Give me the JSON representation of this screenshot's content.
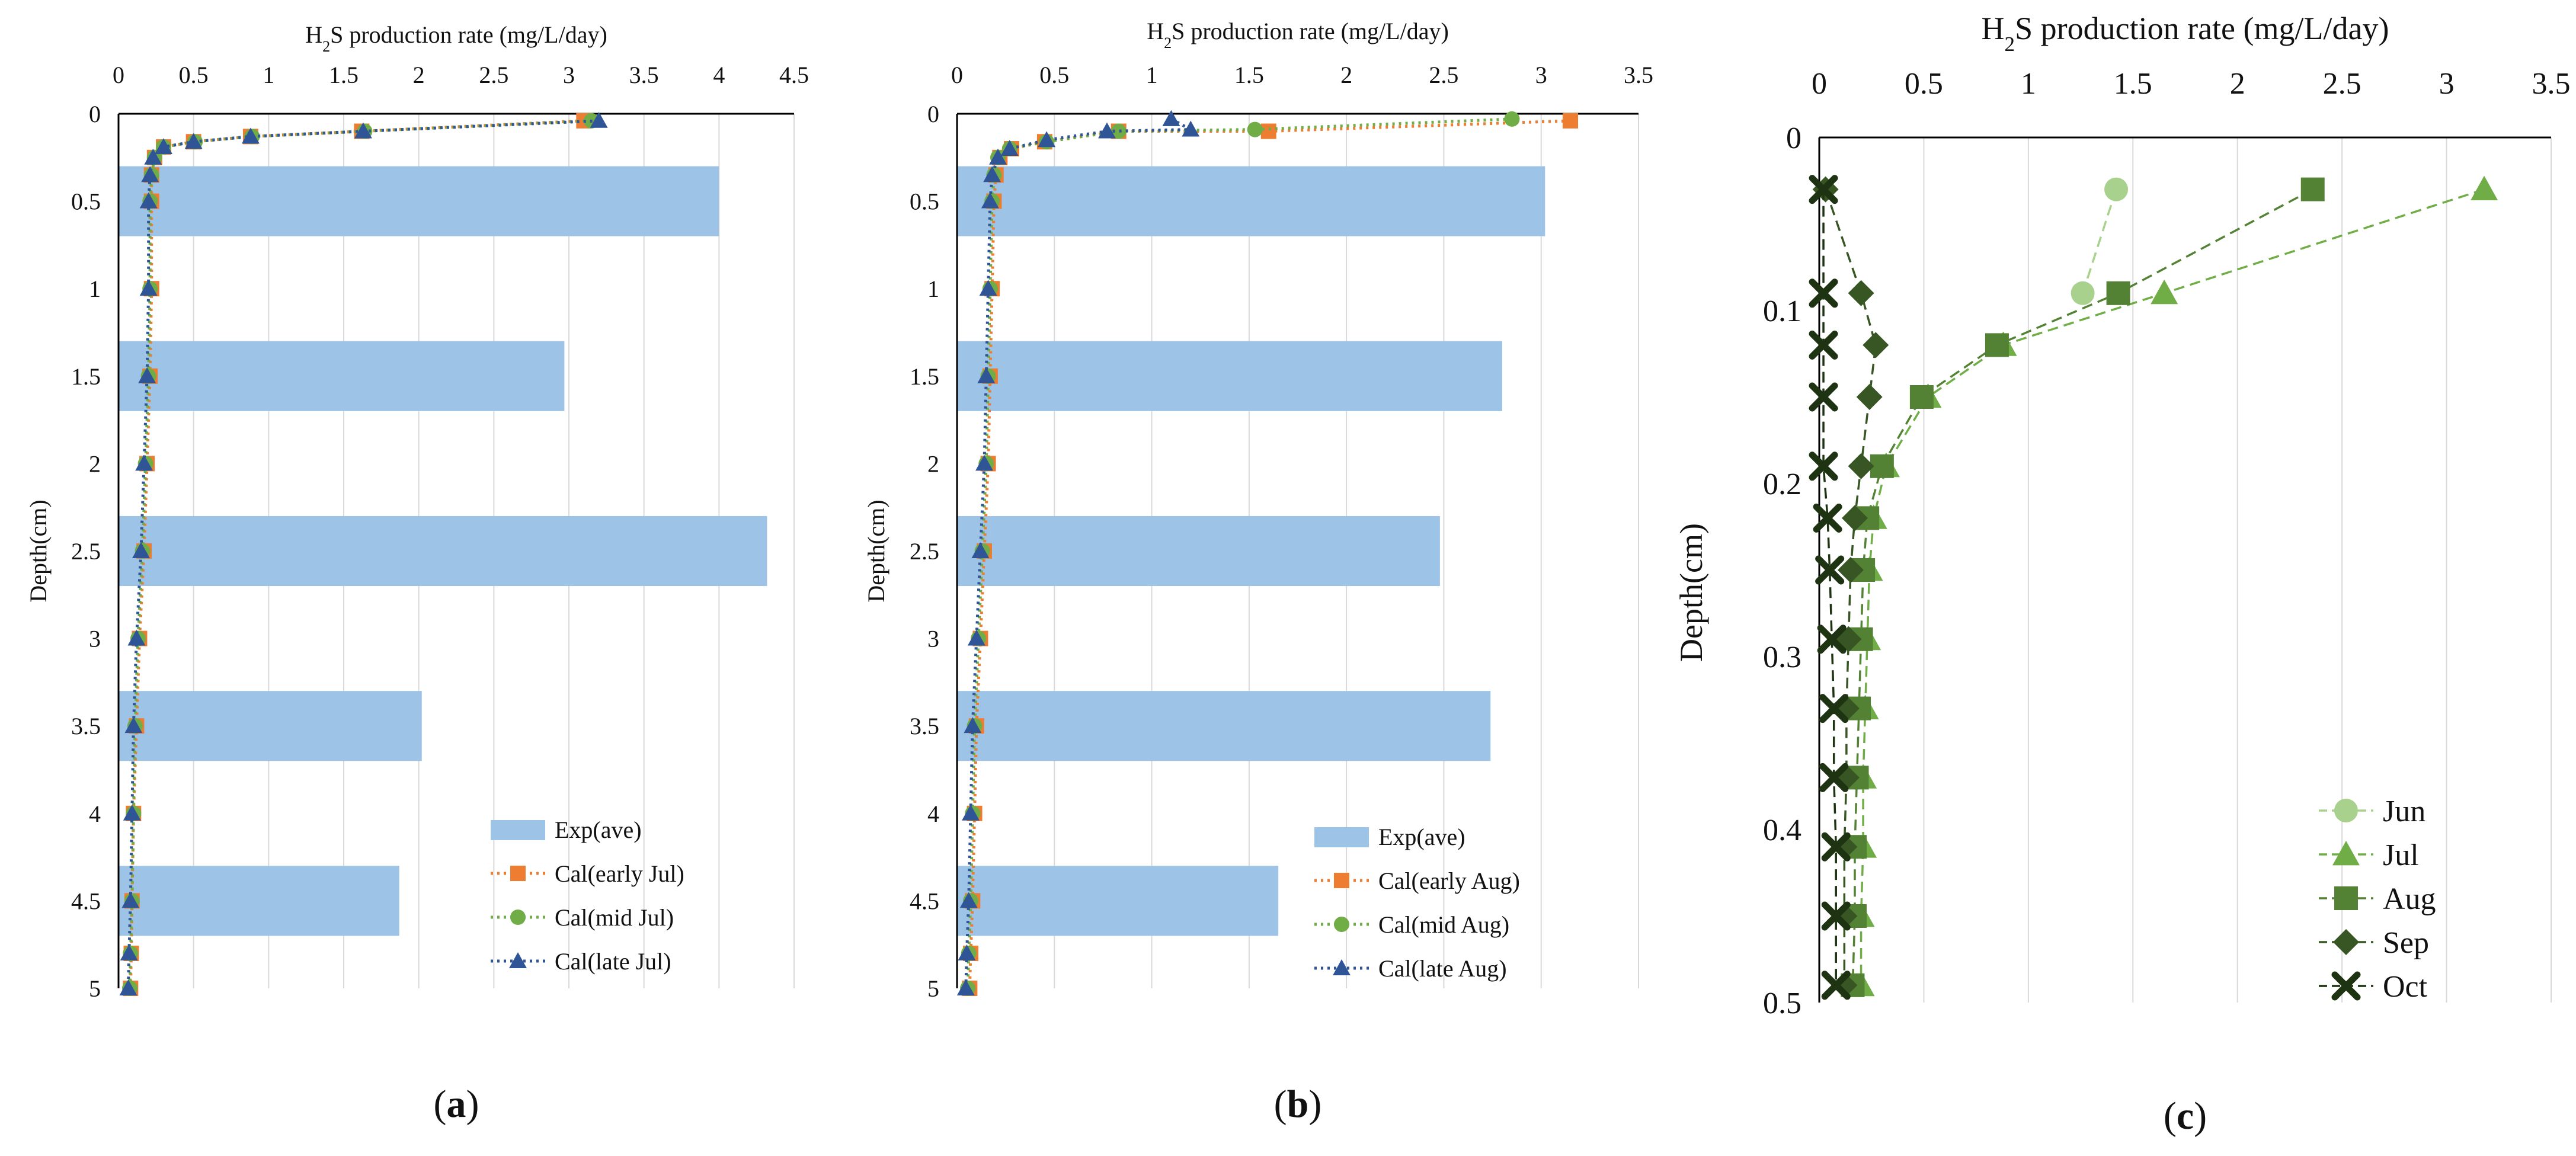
{
  "chart_data": [
    {
      "type": "bar",
      "orientation": "horizontal",
      "panel_label_pre": "(",
      "panel_label": "a",
      "panel_label_post": ")",
      "title_pre": "H",
      "title_sub": "2",
      "title_post": "S production rate (mg/L/day)",
      "ylabel": "Depth(cm)",
      "xlim": [
        0,
        4.5
      ],
      "ylim": [
        0,
        5
      ],
      "x_ticks": [
        "0",
        "0.5",
        "1",
        "1.5",
        "2",
        "2.5",
        "3",
        "3.5",
        "4",
        "4.5"
      ],
      "y_ticks": [
        "0",
        "0.5",
        "1",
        "1.5",
        "2",
        "2.5",
        "3",
        "3.5",
        "4",
        "4.5",
        "5"
      ],
      "grid": "vertical",
      "legend_position": "bottom-right",
      "bars": {
        "name": "Exp(ave)",
        "color": "#9dc3e6",
        "categories": [
          0.5,
          1.5,
          2.5,
          3.5,
          4.5
        ],
        "values": [
          4.0,
          2.97,
          4.32,
          2.02,
          1.87
        ]
      },
      "series": [
        {
          "name": "Cal(early Jul)",
          "color": "#ed7d31",
          "marker": "square",
          "points": [
            [
              3.1,
              0.04
            ],
            [
              1.62,
              0.1
            ],
            [
              0.88,
              0.13
            ],
            [
              0.5,
              0.16
            ],
            [
              0.3,
              0.19
            ],
            [
              0.24,
              0.25
            ],
            [
              0.22,
              0.35
            ],
            [
              0.22,
              0.5
            ],
            [
              0.22,
              1.0
            ],
            [
              0.21,
              1.5
            ],
            [
              0.19,
              2.0
            ],
            [
              0.17,
              2.5
            ],
            [
              0.14,
              3.0
            ],
            [
              0.12,
              3.5
            ],
            [
              0.1,
              4.0
            ],
            [
              0.09,
              4.5
            ],
            [
              0.085,
              4.8
            ],
            [
              0.08,
              5.0
            ]
          ]
        },
        {
          "name": "Cal(mid Jul)",
          "color": "#70ad47",
          "marker": "circle",
          "points": [
            [
              3.15,
              0.04
            ],
            [
              1.64,
              0.1
            ],
            [
              0.89,
              0.13
            ],
            [
              0.51,
              0.16
            ],
            [
              0.3,
              0.19
            ],
            [
              0.24,
              0.25
            ],
            [
              0.22,
              0.35
            ],
            [
              0.21,
              0.5
            ],
            [
              0.21,
              1.0
            ],
            [
              0.2,
              1.5
            ],
            [
              0.18,
              2.0
            ],
            [
              0.16,
              2.5
            ],
            [
              0.13,
              3.0
            ],
            [
              0.11,
              3.5
            ],
            [
              0.1,
              4.0
            ],
            [
              0.09,
              4.5
            ],
            [
              0.08,
              4.8
            ],
            [
              0.075,
              5.0
            ]
          ]
        },
        {
          "name": "Cal(late Jul)",
          "color": "#2f5597",
          "marker": "triangle",
          "points": [
            [
              3.2,
              0.04
            ],
            [
              1.63,
              0.1
            ],
            [
              0.88,
              0.13
            ],
            [
              0.5,
              0.16
            ],
            [
              0.3,
              0.19
            ],
            [
              0.23,
              0.25
            ],
            [
              0.21,
              0.35
            ],
            [
              0.2,
              0.5
            ],
            [
              0.2,
              1.0
            ],
            [
              0.19,
              1.5
            ],
            [
              0.17,
              2.0
            ],
            [
              0.15,
              2.5
            ],
            [
              0.12,
              3.0
            ],
            [
              0.1,
              3.5
            ],
            [
              0.09,
              4.0
            ],
            [
              0.08,
              4.5
            ],
            [
              0.07,
              4.8
            ],
            [
              0.065,
              5.0
            ]
          ]
        }
      ]
    },
    {
      "type": "bar",
      "orientation": "horizontal",
      "panel_label_pre": "(",
      "panel_label": "b",
      "panel_label_post": ")",
      "title_pre": "H",
      "title_sub": "2",
      "title_post": "S production rate (mg/L/day)",
      "ylabel": "Depth(cm)",
      "xlim": [
        0,
        3.5
      ],
      "ylim": [
        0,
        5
      ],
      "x_ticks": [
        "0",
        "0.5",
        "1",
        "1.5",
        "2",
        "2.5",
        "3",
        "3.5"
      ],
      "y_ticks": [
        "0",
        "0.5",
        "1",
        "1.5",
        "2",
        "2.5",
        "3",
        "3.5",
        "4",
        "4.5",
        "5"
      ],
      "grid": "vertical",
      "legend_position": "bottom-right",
      "bars": {
        "name": "Exp(ave)",
        "color": "#9dc3e6",
        "categories": [
          0.5,
          1.5,
          2.5,
          3.5,
          4.5
        ],
        "values": [
          3.02,
          2.8,
          2.48,
          2.74,
          1.65
        ]
      },
      "series": [
        {
          "name": "Cal(early Aug)",
          "color": "#ed7d31",
          "marker": "square",
          "points": [
            [
              3.15,
              0.04
            ],
            [
              1.6,
              0.1
            ],
            [
              0.83,
              0.1
            ],
            [
              0.45,
              0.16
            ],
            [
              0.28,
              0.2
            ],
            [
              0.22,
              0.25
            ],
            [
              0.2,
              0.35
            ],
            [
              0.19,
              0.5
            ],
            [
              0.18,
              1.0
            ],
            [
              0.17,
              1.5
            ],
            [
              0.16,
              2.0
            ],
            [
              0.14,
              2.5
            ],
            [
              0.12,
              3.0
            ],
            [
              0.1,
              3.5
            ],
            [
              0.09,
              4.0
            ],
            [
              0.08,
              4.5
            ],
            [
              0.07,
              4.8
            ],
            [
              0.065,
              5.0
            ]
          ]
        },
        {
          "name": "Cal(mid Aug)",
          "color": "#70ad47",
          "marker": "circle",
          "points": [
            [
              2.85,
              0.03
            ],
            [
              1.53,
              0.09
            ],
            [
              0.83,
              0.1
            ],
            [
              0.46,
              0.16
            ],
            [
              0.27,
              0.2
            ],
            [
              0.21,
              0.25
            ],
            [
              0.19,
              0.35
            ],
            [
              0.18,
              0.5
            ],
            [
              0.17,
              1.0
            ],
            [
              0.16,
              1.5
            ],
            [
              0.15,
              2.0
            ],
            [
              0.13,
              2.5
            ],
            [
              0.11,
              3.0
            ],
            [
              0.09,
              3.5
            ],
            [
              0.08,
              4.0
            ],
            [
              0.07,
              4.5
            ],
            [
              0.06,
              4.8
            ],
            [
              0.055,
              5.0
            ]
          ]
        },
        {
          "name": "Cal(late Aug)",
          "color": "#2f5597",
          "marker": "triangle",
          "points": [
            [
              1.1,
              0.03
            ],
            [
              1.2,
              0.09
            ],
            [
              0.77,
              0.1
            ],
            [
              0.46,
              0.15
            ],
            [
              0.27,
              0.2
            ],
            [
              0.21,
              0.25
            ],
            [
              0.18,
              0.35
            ],
            [
              0.17,
              0.5
            ],
            [
              0.16,
              1.0
            ],
            [
              0.15,
              1.5
            ],
            [
              0.14,
              2.0
            ],
            [
              0.12,
              2.5
            ],
            [
              0.1,
              3.0
            ],
            [
              0.08,
              3.5
            ],
            [
              0.07,
              4.0
            ],
            [
              0.06,
              4.5
            ],
            [
              0.05,
              4.8
            ],
            [
              0.045,
              5.0
            ]
          ]
        }
      ]
    },
    {
      "type": "line",
      "panel_label_pre": "(",
      "panel_label": "c",
      "panel_label_post": ")",
      "title_pre": "H",
      "title_sub": "2",
      "title_post": "S production rate (mg/L/day)",
      "ylabel": "Depth(cm)",
      "xlim": [
        0,
        3.5
      ],
      "ylim": [
        0,
        0.5
      ],
      "x_ticks": [
        "0",
        "0.5",
        "1",
        "1.5",
        "2",
        "2.5",
        "3",
        "3.5"
      ],
      "y_ticks": [
        "0",
        "0.1",
        "0.2",
        "0.3",
        "0.4",
        "0.5"
      ],
      "grid": "vertical",
      "legend_position": "bottom-right",
      "series": [
        {
          "name": "Jun",
          "color": "#a9d18e",
          "marker": "circle",
          "points": [
            [
              1.42,
              0.03
            ],
            [
              1.26,
              0.09
            ]
          ]
        },
        {
          "name": "Jul",
          "color": "#70ad47",
          "marker": "triangle",
          "points": [
            [
              3.18,
              0.03
            ],
            [
              1.65,
              0.09
            ],
            [
              0.88,
              0.12
            ],
            [
              0.52,
              0.15
            ],
            [
              0.32,
              0.19
            ],
            [
              0.26,
              0.22
            ],
            [
              0.24,
              0.25
            ],
            [
              0.23,
              0.29
            ],
            [
              0.22,
              0.33
            ],
            [
              0.21,
              0.37
            ],
            [
              0.21,
              0.41
            ],
            [
              0.2,
              0.45
            ],
            [
              0.2,
              0.49
            ]
          ]
        },
        {
          "name": "Aug",
          "color": "#548235",
          "marker": "square",
          "points": [
            [
              2.36,
              0.03
            ],
            [
              1.43,
              0.09
            ],
            [
              0.85,
              0.12
            ],
            [
              0.49,
              0.15
            ],
            [
              0.3,
              0.19
            ],
            [
              0.23,
              0.22
            ],
            [
              0.21,
              0.25
            ],
            [
              0.2,
              0.29
            ],
            [
              0.19,
              0.33
            ],
            [
              0.18,
              0.37
            ],
            [
              0.17,
              0.41
            ],
            [
              0.17,
              0.45
            ],
            [
              0.16,
              0.49
            ]
          ]
        },
        {
          "name": "Sep",
          "color": "#375623",
          "marker": "diamond",
          "points": [
            [
              0.03,
              0.03
            ],
            [
              0.2,
              0.09
            ],
            [
              0.27,
              0.12
            ],
            [
              0.24,
              0.15
            ],
            [
              0.2,
              0.19
            ],
            [
              0.17,
              0.22
            ],
            [
              0.15,
              0.25
            ],
            [
              0.14,
              0.29
            ],
            [
              0.13,
              0.33
            ],
            [
              0.13,
              0.37
            ],
            [
              0.12,
              0.41
            ],
            [
              0.12,
              0.45
            ],
            [
              0.12,
              0.49
            ]
          ]
        },
        {
          "name": "Oct",
          "color": "#1e3311",
          "marker": "x",
          "points": [
            [
              0.02,
              0.03
            ],
            [
              0.02,
              0.09
            ],
            [
              0.02,
              0.12
            ],
            [
              0.02,
              0.15
            ],
            [
              0.02,
              0.19
            ],
            [
              0.04,
              0.22
            ],
            [
              0.05,
              0.25
            ],
            [
              0.06,
              0.29
            ],
            [
              0.07,
              0.33
            ],
            [
              0.07,
              0.37
            ],
            [
              0.08,
              0.41
            ],
            [
              0.08,
              0.45
            ],
            [
              0.08,
              0.49
            ]
          ]
        }
      ]
    }
  ]
}
